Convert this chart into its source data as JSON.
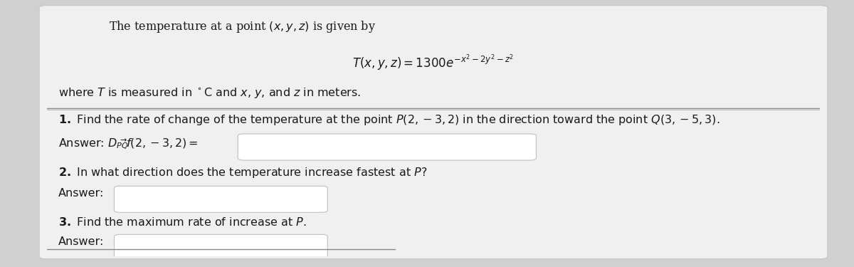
{
  "outer_bg": "#d0d0d0",
  "panel_bg": "#f0f0f0",
  "white": "#ffffff",
  "box_edge": "#c0c0c0",
  "text_color": "#1a1a1a",
  "separator_color": "#888888",
  "font_size": 11.5,
  "formula_font_size": 12,
  "title_line": "The temperature at a point $(x, y, z)$ is given by",
  "formula_line": "$T(x, y, z) = 1300e^{-x^2-2y^2-z^2}$",
  "where_line": "where $T$ is measured in $^{\\circ}$C and $x$, $y$, and $z$ in meters.",
  "q1_line": "\\textbf{1.} Find the rate of change of the temperature at the point $P(2,-3,2)$ in the direction toward the point $Q(3,-5,3)$.",
  "q1_ans": "Answer: $D_{\\overrightarrow{PQ}}\\!f(2,-3,2) =$",
  "q2_line": "\\textbf{2.} In what direction does the temperature increase fastest at $P$?",
  "q2_ans": "Answer:",
  "q3_line": "\\textbf{3.} Find the maximum rate of increase at $P$.",
  "q3_ans": "Answer:"
}
